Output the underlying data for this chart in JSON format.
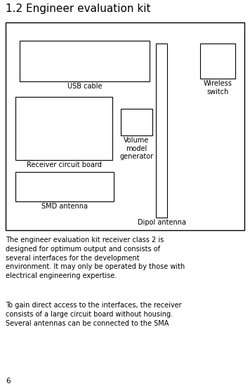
{
  "title": "1.2 Engineer evaluation kit",
  "title_fontsize": 11,
  "bg_color": "#ffffff",
  "border_color": "#000000",
  "text_color": "#000000",
  "paragraph1": "The engineer evaluation kit receiver class 2 is\ndesigned for optimum output and consists of\nseveral interfaces for the development\nenvironment. It may only be operated by those with\nelectrical engineering expertise.",
  "paragraph2": "To gain direct access to the interfaces, the receiver\nconsists of a large circuit board without housing.\nSeveral antennas can be connected to the SMA",
  "footer": "6",
  "label_fontsize": 7.0,
  "text_fontsize": 7.0
}
